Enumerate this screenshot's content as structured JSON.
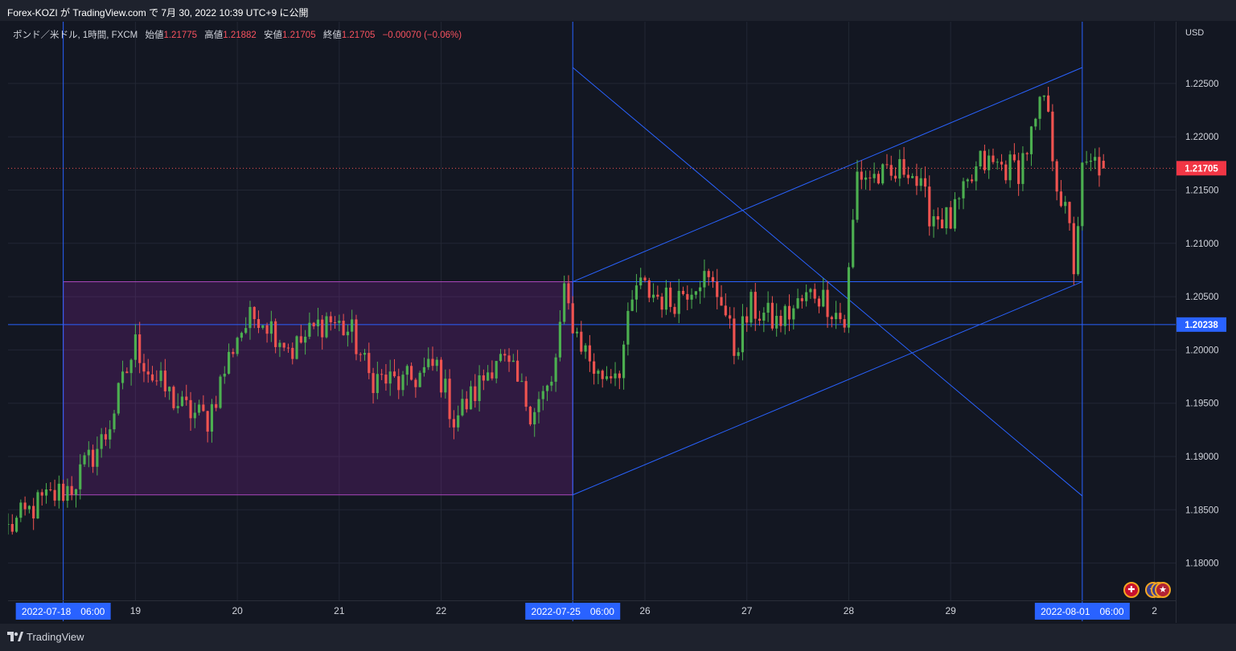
{
  "header": {
    "title": "Forex-KOZI が TradingView.com で 7月 30, 2022 10:39 UTC+9 に公開"
  },
  "legend": {
    "symbol": "ポンド／米ドル, 1時間, FXCM",
    "open_label": "始値",
    "open": "1.21775",
    "high_label": "高値",
    "high": "1.21882",
    "low_label": "安値",
    "low": "1.21705",
    "close_label": "終値",
    "close": "1.21705",
    "change": "−0.00070 (−0.06%)"
  },
  "axis": {
    "currency": "USD"
  },
  "footer": {
    "brand": "TradingView"
  },
  "colors": {
    "background": "#131722",
    "up": "#26a69a",
    "down": "#ef5350",
    "up_candle": "#4caf50",
    "line": "#2962ff",
    "zone": "#9c27b0"
  },
  "chart_data": {
    "type": "candlestick",
    "symbol": "GBPUSD",
    "interval": "1h",
    "ylim": [
      1.1765,
      1.2308
    ],
    "y_ticks": [
      "1.18000",
      "1.18500",
      "1.19000",
      "1.19500",
      "1.20000",
      "1.20500",
      "1.21000",
      "1.21500",
      "1.22000",
      "1.22500"
    ],
    "x_ticks": [
      {
        "label": "19",
        "t": 17.0
      },
      {
        "label": "20",
        "t": 41.0
      },
      {
        "label": "21",
        "t": 65.0
      },
      {
        "label": "22",
        "t": 89.0
      },
      {
        "label": "26",
        "t": 137.0
      },
      {
        "label": "27",
        "t": 161.0
      },
      {
        "label": "28",
        "t": 185.0
      },
      {
        "label": "29",
        "t": 209.0
      },
      {
        "label": "2",
        "t": 257.0
      }
    ],
    "x_range": [
      -13.0,
      262.0
    ],
    "time_markers": [
      {
        "label": "2022-07-18　06:00",
        "t": 0
      },
      {
        "label": "2022-07-25　06:00",
        "t": 120
      },
      {
        "label": "2022-08-01　06:00",
        "t": 240
      }
    ],
    "price_labels": [
      {
        "label": "1.21705",
        "price": 1.21705,
        "kind": "last"
      },
      {
        "label": "1.20238",
        "price": 1.20238,
        "kind": "level"
      }
    ],
    "last_price": 1.21705,
    "horizontal_level": 1.20238,
    "rectangle": {
      "t1": 0,
      "t2": 120,
      "p_top": 1.2064,
      "p_bottom": 1.1864
    },
    "trend_lines": [
      {
        "t1": 120,
        "p1": 1.2265,
        "t2": 240,
        "p2": 1.1863
      },
      {
        "t1": 120,
        "p1": 1.1864,
        "t2": 240,
        "p2": 1.2064
      },
      {
        "t1": 120,
        "p1": 1.2064,
        "t2": 240,
        "p2": 1.2265
      },
      {
        "t1": 120,
        "p1": 1.2064,
        "t2": 240,
        "p2": 1.2064
      }
    ],
    "anchors": [
      {
        "t": -13,
        "p": 1.1832
      },
      {
        "t": -6,
        "p": 1.1855
      },
      {
        "t": 2,
        "p": 1.1872
      },
      {
        "t": 10,
        "p": 1.192
      },
      {
        "t": 17,
        "p": 1.2005
      },
      {
        "t": 21,
        "p": 1.1975
      },
      {
        "t": 28,
        "p": 1.1945
      },
      {
        "t": 34,
        "p": 1.1935
      },
      {
        "t": 41,
        "p": 1.2015
      },
      {
        "t": 46,
        "p": 1.2035
      },
      {
        "t": 54,
        "p": 1.2
      },
      {
        "t": 62,
        "p": 1.203
      },
      {
        "t": 68,
        "p": 1.2015
      },
      {
        "t": 72,
        "p": 1.1975
      },
      {
        "t": 80,
        "p": 1.1968
      },
      {
        "t": 88,
        "p": 1.1985
      },
      {
        "t": 92,
        "p": 1.1935
      },
      {
        "t": 97,
        "p": 1.196
      },
      {
        "t": 102,
        "p": 1.1995
      },
      {
        "t": 106,
        "p": 1.1975
      },
      {
        "t": 110,
        "p": 1.1945
      },
      {
        "t": 115,
        "p": 1.1965
      },
      {
        "t": 118,
        "p": 1.205
      },
      {
        "t": 121,
        "p": 1.2015
      },
      {
        "t": 126,
        "p": 1.1975
      },
      {
        "t": 131,
        "p": 1.1985
      },
      {
        "t": 135,
        "p": 1.206
      },
      {
        "t": 143,
        "p": 1.2045
      },
      {
        "t": 150,
        "p": 1.207
      },
      {
        "t": 155,
        "p": 1.205
      },
      {
        "t": 158,
        "p": 1.2
      },
      {
        "t": 162,
        "p": 1.204
      },
      {
        "t": 168,
        "p": 1.2025
      },
      {
        "t": 177,
        "p": 1.2055
      },
      {
        "t": 180,
        "p": 1.2045
      },
      {
        "t": 184,
        "p": 1.2025
      },
      {
        "t": 187,
        "p": 1.2165
      },
      {
        "t": 195,
        "p": 1.216
      },
      {
        "t": 199,
        "p": 1.2175
      },
      {
        "t": 204,
        "p": 1.213
      },
      {
        "t": 209,
        "p": 1.212
      },
      {
        "t": 216,
        "p": 1.2175
      },
      {
        "t": 225,
        "p": 1.217
      },
      {
        "t": 229,
        "p": 1.221
      },
      {
        "t": 231,
        "p": 1.2238
      },
      {
        "t": 234,
        "p": 1.216
      },
      {
        "t": 237,
        "p": 1.211
      },
      {
        "t": 238,
        "p": 1.2078
      },
      {
        "t": 240,
        "p": 1.2165
      },
      {
        "t": 243,
        "p": 1.2175
      },
      {
        "t": 245,
        "p": 1.21705
      }
    ]
  }
}
